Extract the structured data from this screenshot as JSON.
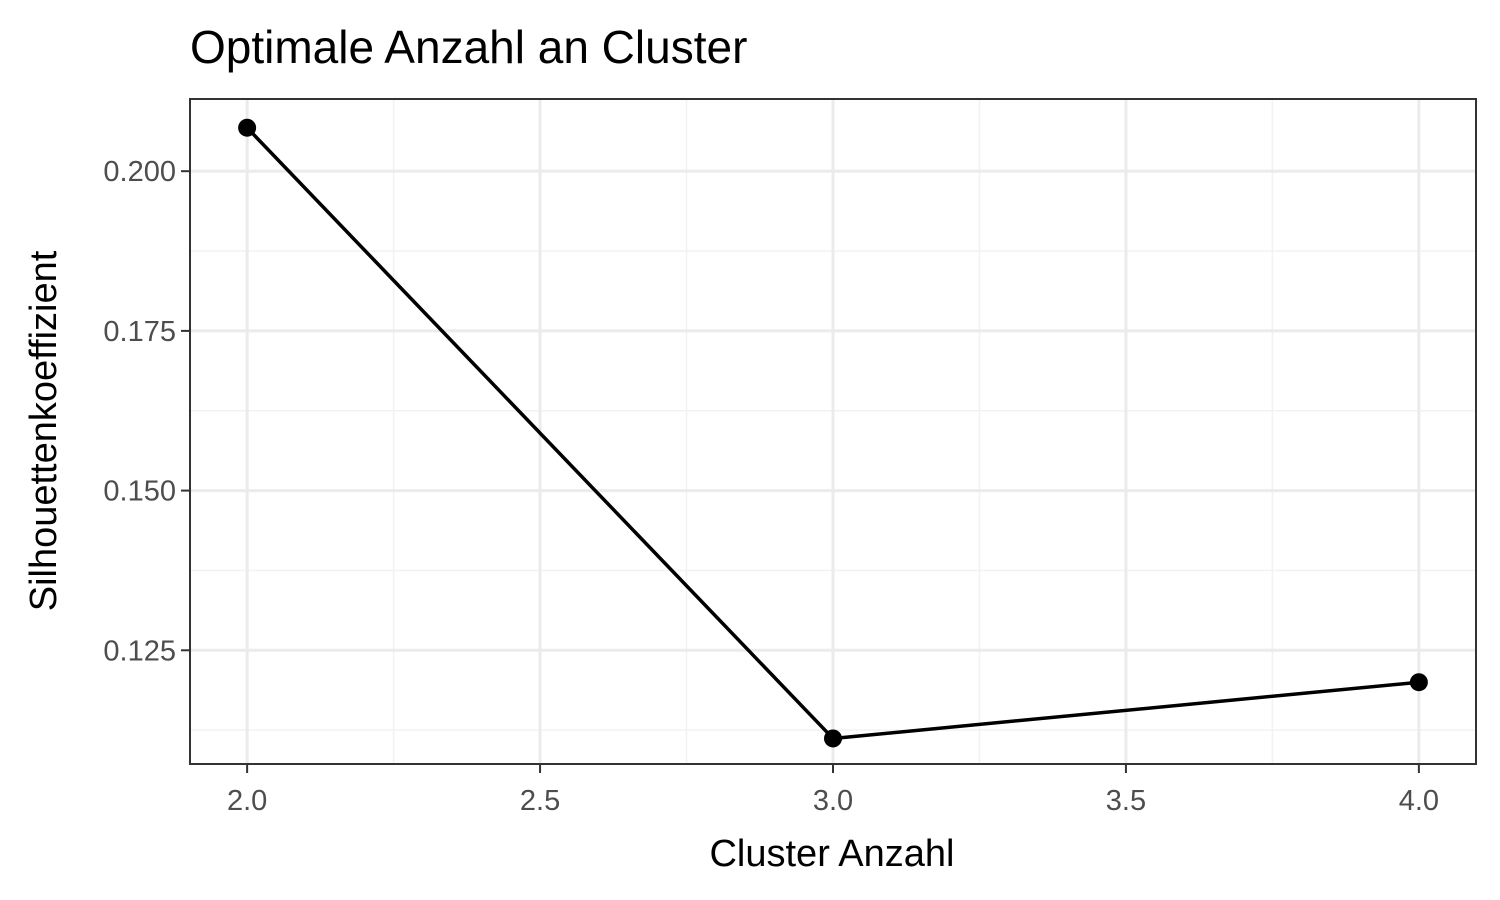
{
  "chart_data": {
    "type": "line",
    "title": "Optimale Anzahl an Cluster",
    "xlabel": "Cluster Anzahl",
    "ylabel": "Silhouettenkoeffizient",
    "x": [
      2,
      3,
      4
    ],
    "series": [
      {
        "values": [
          0.2068,
          0.1112,
          0.12
        ]
      }
    ],
    "xlim": [
      1.9025,
      4.0975
    ],
    "ylim": [
      0.1072,
      0.2113
    ],
    "xticks": [
      2.0,
      2.5,
      3.0,
      3.5,
      4.0
    ],
    "xtick_labels": [
      "2.0",
      "2.5",
      "3.0",
      "3.5",
      "4.0"
    ],
    "yticks": [
      0.125,
      0.15,
      0.175,
      0.2
    ],
    "ytick_labels": [
      "0.125",
      "0.150",
      "0.175",
      "0.200"
    ],
    "grid": true,
    "markers": true,
    "legend": "none",
    "colors": {
      "line": "#000000",
      "grid_major": "#ebebeb",
      "grid_minor": "#f2f2f2",
      "panel_border": "#333333",
      "tick_text": "#4d4d4d"
    }
  }
}
